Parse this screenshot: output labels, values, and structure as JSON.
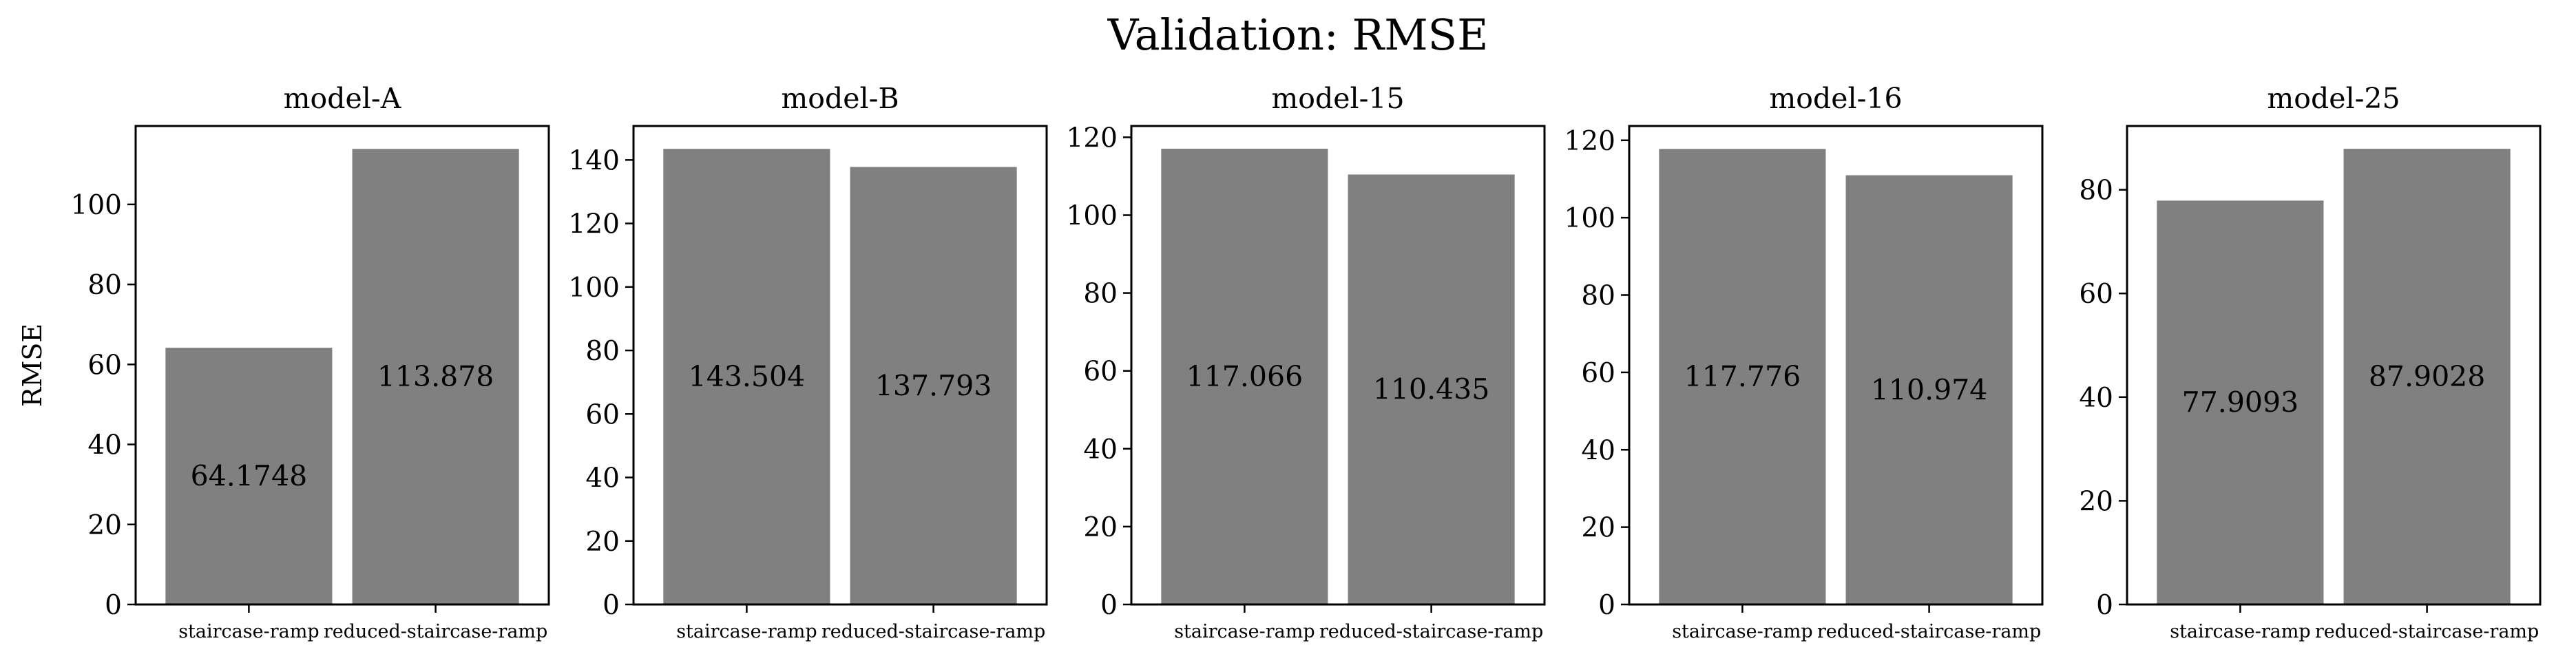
{
  "figure": {
    "suptitle": "Validation: RMSE"
  },
  "chart_data": [
    {
      "type": "bar",
      "title": "model-A",
      "ylabel": "RMSE",
      "xlabel": "",
      "categories": [
        "staircase-ramp",
        "reduced-staircase-ramp"
      ],
      "values": [
        64.1748,
        113.878
      ],
      "value_labels": [
        "64.1748",
        "113.878"
      ],
      "ylim": [
        0,
        119.6
      ],
      "yticks": [
        0,
        20,
        40,
        60,
        80,
        100
      ],
      "bar_color": "#808080"
    },
    {
      "type": "bar",
      "title": "model-B",
      "ylabel": "",
      "xlabel": "",
      "categories": [
        "staircase-ramp",
        "reduced-staircase-ramp"
      ],
      "values": [
        143.504,
        137.793
      ],
      "value_labels": [
        "143.504",
        "137.793"
      ],
      "ylim": [
        0,
        150.7
      ],
      "yticks": [
        0,
        20,
        40,
        60,
        80,
        100,
        120,
        140
      ],
      "bar_color": "#808080"
    },
    {
      "type": "bar",
      "title": "model-15",
      "ylabel": "",
      "xlabel": "",
      "categories": [
        "staircase-ramp",
        "reduced-staircase-ramp"
      ],
      "values": [
        117.066,
        110.435
      ],
      "value_labels": [
        "117.066",
        "110.435"
      ],
      "ylim": [
        0,
        122.9
      ],
      "yticks": [
        0,
        20,
        40,
        60,
        80,
        100,
        120
      ],
      "bar_color": "#808080"
    },
    {
      "type": "bar",
      "title": "model-16",
      "ylabel": "",
      "xlabel": "",
      "categories": [
        "staircase-ramp",
        "reduced-staircase-ramp"
      ],
      "values": [
        117.776,
        110.974
      ],
      "value_labels": [
        "117.776",
        "110.974"
      ],
      "ylim": [
        0,
        123.7
      ],
      "yticks": [
        0,
        20,
        40,
        60,
        80,
        100,
        120
      ],
      "bar_color": "#808080"
    },
    {
      "type": "bar",
      "title": "model-25",
      "ylabel": "",
      "xlabel": "",
      "categories": [
        "staircase-ramp",
        "reduced-staircase-ramp"
      ],
      "values": [
        77.9093,
        87.9028
      ],
      "value_labels": [
        "77.9093",
        "87.9028"
      ],
      "ylim": [
        0,
        92.3
      ],
      "yticks": [
        0,
        20,
        40,
        60,
        80
      ],
      "bar_color": "#808080"
    }
  ]
}
